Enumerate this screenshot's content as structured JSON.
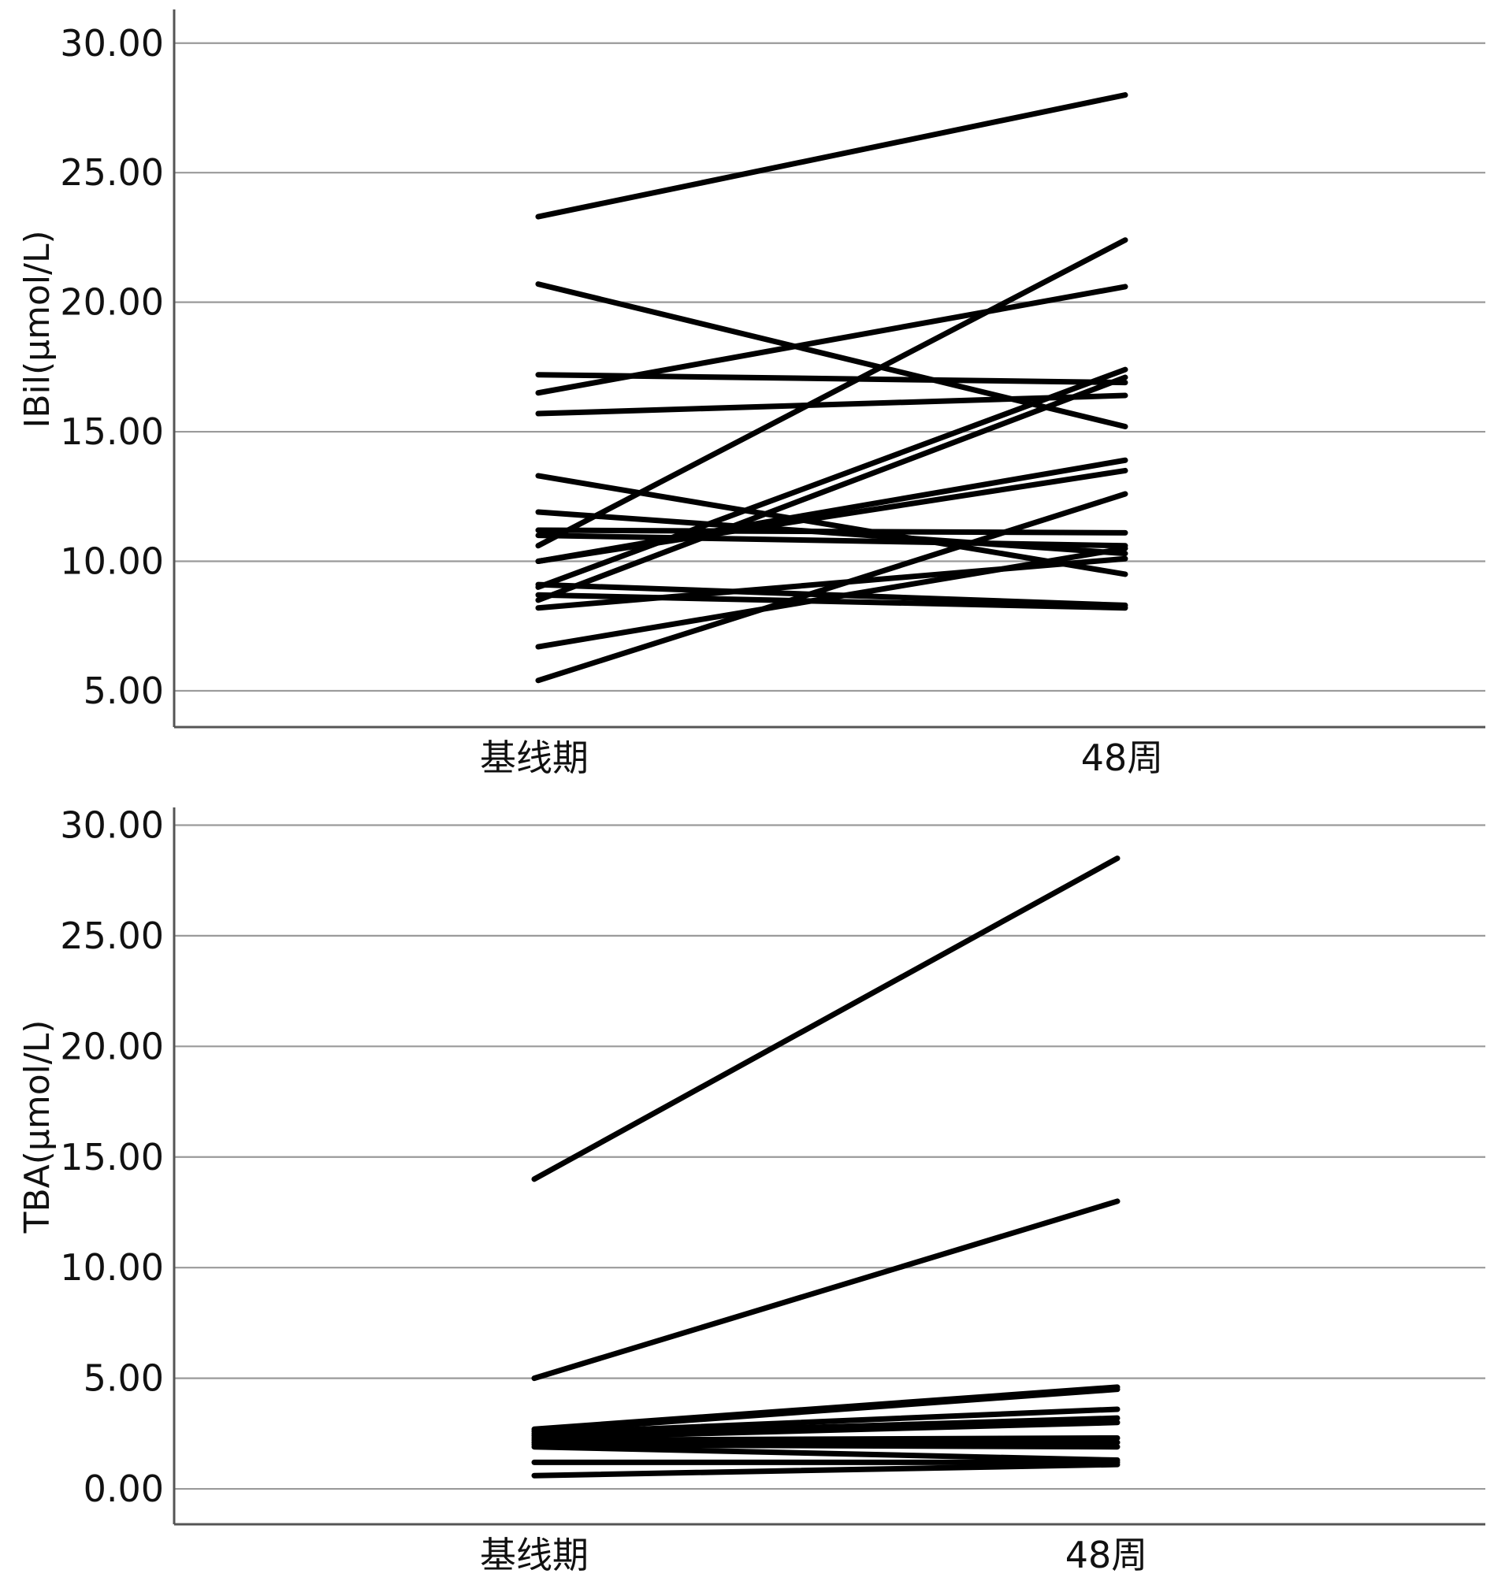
{
  "chart_data": [
    {
      "type": "line",
      "ylabel": "IBil(μmol/L)",
      "xlabel": "",
      "categories": [
        "基线期",
        "48周"
      ],
      "ylim": [
        3.6,
        31.3
      ],
      "y_ticks": [
        "5.00",
        "10.00",
        "15.00",
        "20.00",
        "25.00",
        "30.00"
      ],
      "grid": "horizontal",
      "line_color": "#000000",
      "series": [
        {
          "values": [
            23.3,
            28.0
          ]
        },
        {
          "values": [
            20.7,
            15.2
          ]
        },
        {
          "values": [
            17.2,
            16.9
          ]
        },
        {
          "values": [
            16.5,
            20.6
          ]
        },
        {
          "values": [
            15.7,
            16.4
          ]
        },
        {
          "values": [
            13.3,
            9.5
          ]
        },
        {
          "values": [
            11.9,
            10.3
          ]
        },
        {
          "values": [
            11.2,
            11.1
          ]
        },
        {
          "values": [
            11.0,
            10.6
          ]
        },
        {
          "values": [
            10.6,
            22.4
          ]
        },
        {
          "values": [
            10.0,
            13.9
          ]
        },
        {
          "values": [
            10.0,
            13.5
          ]
        },
        {
          "values": [
            9.1,
            8.3
          ]
        },
        {
          "values": [
            9.0,
            17.4
          ]
        },
        {
          "values": [
            8.7,
            8.2
          ]
        },
        {
          "values": [
            8.5,
            17.1
          ]
        },
        {
          "values": [
            8.2,
            10.1
          ]
        },
        {
          "values": [
            6.7,
            10.5
          ]
        },
        {
          "values": [
            5.4,
            12.6
          ]
        }
      ]
    },
    {
      "type": "line",
      "ylabel": "TBA(μmol/L)",
      "xlabel": "",
      "categories": [
        "基线期",
        "48周"
      ],
      "ylim": [
        -1.6,
        30.8
      ],
      "y_ticks": [
        "0.00",
        "5.00",
        "10.00",
        "15.00",
        "20.00",
        "25.00",
        "30.00"
      ],
      "grid": "horizontal",
      "line_color": "#000000",
      "series": [
        {
          "values": [
            14.0,
            28.5
          ]
        },
        {
          "values": [
            5.0,
            13.0
          ]
        },
        {
          "values": [
            2.7,
            4.6
          ]
        },
        {
          "values": [
            2.6,
            4.5
          ]
        },
        {
          "values": [
            2.5,
            3.6
          ]
        },
        {
          "values": [
            2.4,
            3.2
          ]
        },
        {
          "values": [
            2.3,
            3.0
          ]
        },
        {
          "values": [
            2.2,
            2.3
          ]
        },
        {
          "values": [
            2.1,
            2.1
          ]
        },
        {
          "values": [
            2.0,
            1.9
          ]
        },
        {
          "values": [
            1.9,
            1.3
          ]
        },
        {
          "values": [
            1.2,
            1.2
          ]
        },
        {
          "values": [
            0.6,
            1.1
          ]
        }
      ]
    }
  ]
}
